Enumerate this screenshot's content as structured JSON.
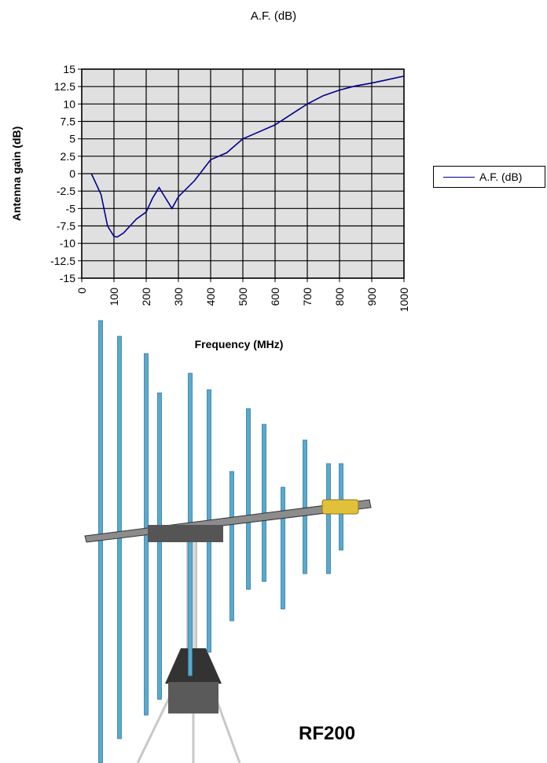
{
  "chart_data": {
    "type": "line",
    "title": "A.F. (dB)",
    "xlabel": "Frequency (MHz)",
    "ylabel": "Antenna gain (dB)",
    "xlim": [
      0,
      1000
    ],
    "ylim": [
      -15,
      15
    ],
    "x_ticks": [
      0,
      100,
      200,
      300,
      400,
      500,
      600,
      700,
      800,
      900,
      1000
    ],
    "y_ticks": [
      "15",
      "12.5",
      "10",
      "7.5",
      "5",
      "2.5",
      "0",
      "-2.5",
      "-5",
      "-7.5",
      "-10",
      "-12.5",
      "-15"
    ],
    "grid": true,
    "legend": "right",
    "series": [
      {
        "name": "A.F. (dB)",
        "color": "#00008b",
        "x": [
          30,
          60,
          80,
          100,
          110,
          130,
          170,
          200,
          220,
          240,
          260,
          280,
          300,
          350,
          400,
          450,
          500,
          550,
          600,
          650,
          700,
          750,
          800,
          850,
          900,
          950,
          1000
        ],
        "y": [
          0,
          -3,
          -7.5,
          -9,
          -9.1,
          -8.5,
          -6.5,
          -5.5,
          -3.5,
          -2,
          -3.5,
          -5,
          -3.3,
          -1,
          2,
          3,
          5,
          6,
          7,
          8.5,
          10,
          11.2,
          12,
          12.6,
          13,
          13.5,
          14
        ]
      }
    ]
  },
  "photo": {
    "label": "RF200",
    "alt_icon": "log-periodic-antenna-icon"
  }
}
